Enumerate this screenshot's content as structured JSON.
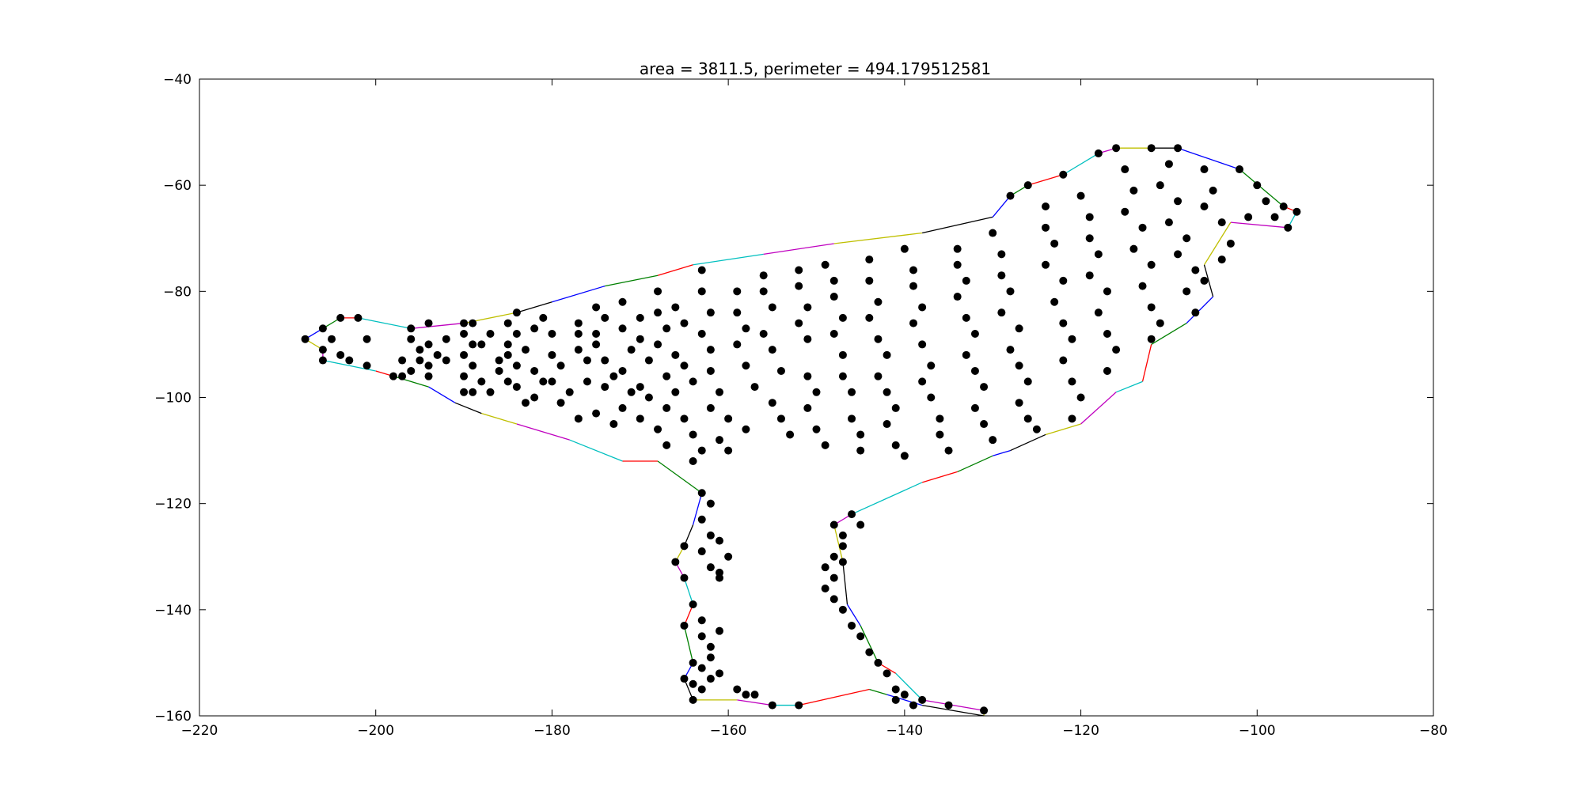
{
  "chart_data": {
    "type": "scatter",
    "title": "area = 3811.5, perimeter = 494.179512581",
    "xlabel": "",
    "ylabel": "",
    "xlim": [
      -220,
      -80
    ],
    "ylim": [
      -160,
      -40
    ],
    "xticks": [
      -220,
      -200,
      -180,
      -160,
      -140,
      -120,
      -100,
      -80
    ],
    "yticks": [
      -40,
      -60,
      -80,
      -100,
      -120,
      -140,
      -160
    ],
    "grid": false,
    "point_color": "#000000",
    "edge_colors": [
      "#0000ff",
      "#008000",
      "#ff0000",
      "#00bfbf",
      "#bf00bf",
      "#bfbf00",
      "#000000"
    ],
    "hull": [
      [
        -208,
        -89
      ],
      [
        -206,
        -87
      ],
      [
        -204,
        -85
      ],
      [
        -202,
        -85
      ],
      [
        -196,
        -87
      ],
      [
        -190,
        -86
      ],
      [
        -184,
        -84
      ],
      [
        -180,
        -82
      ],
      [
        -174,
        -79
      ],
      [
        -168,
        -77
      ],
      [
        -164,
        -75
      ],
      [
        -156,
        -73
      ],
      [
        -148,
        -71
      ],
      [
        -138,
        -69
      ],
      [
        -130,
        -66
      ],
      [
        -128,
        -62
      ],
      [
        -126,
        -60
      ],
      [
        -122,
        -58
      ],
      [
        -118,
        -54
      ],
      [
        -116,
        -53
      ],
      [
        -112,
        -53
      ],
      [
        -109,
        -53
      ],
      [
        -102,
        -57
      ],
      [
        -97,
        -64
      ],
      [
        -95.5,
        -65
      ],
      [
        -96.5,
        -68
      ],
      [
        -103,
        -67
      ],
      [
        -106,
        -75
      ],
      [
        -105,
        -81
      ],
      [
        -108,
        -86
      ],
      [
        -112,
        -90
      ],
      [
        -113,
        -97
      ],
      [
        -116,
        -99
      ],
      [
        -120,
        -105
      ],
      [
        -124,
        -107
      ],
      [
        -128,
        -110
      ],
      [
        -130,
        -111
      ],
      [
        -134,
        -114
      ],
      [
        -138,
        -116
      ],
      [
        -146,
        -122
      ],
      [
        -148,
        -124
      ],
      [
        -147,
        -131
      ],
      [
        -146.5,
        -139
      ],
      [
        -145,
        -143
      ],
      [
        -143,
        -150
      ],
      [
        -141,
        -152
      ],
      [
        -138,
        -157
      ],
      [
        -131,
        -159
      ],
      [
        -131,
        -160
      ],
      [
        -138,
        -158
      ],
      [
        -142,
        -156
      ],
      [
        -144,
        -155
      ],
      [
        -152,
        -158
      ],
      [
        -155,
        -158
      ],
      [
        -159,
        -157
      ],
      [
        -164,
        -157
      ],
      [
        -165,
        -153
      ],
      [
        -164,
        -150
      ],
      [
        -165,
        -143
      ],
      [
        -164,
        -139
      ],
      [
        -165,
        -134
      ],
      [
        -166,
        -131
      ],
      [
        -165,
        -128
      ],
      [
        -164,
        -124
      ],
      [
        -163,
        -118
      ],
      [
        -168,
        -112
      ],
      [
        -172,
        -112
      ],
      [
        -178,
        -108
      ],
      [
        -184,
        -105
      ],
      [
        -188,
        -103
      ],
      [
        -191,
        -101
      ],
      [
        -194,
        -98
      ],
      [
        -198,
        -96
      ],
      [
        -200,
        -95
      ],
      [
        -206,
        -93
      ],
      [
        -206,
        -91
      ],
      [
        -208,
        -89
      ]
    ],
    "points": [
      [
        -208,
        -89
      ],
      [
        -206,
        -87
      ],
      [
        -204,
        -85
      ],
      [
        -202,
        -85
      ],
      [
        -206,
        -91
      ],
      [
        -206,
        -93
      ],
      [
        -205,
        -89
      ],
      [
        -204,
        -92
      ],
      [
        -203,
        -93
      ],
      [
        -201,
        -89
      ],
      [
        -201,
        -94
      ],
      [
        -196,
        -87
      ],
      [
        -196,
        -89
      ],
      [
        -195,
        -91
      ],
      [
        -197,
        -93
      ],
      [
        -195,
        -93
      ],
      [
        -196,
        -95
      ],
      [
        -198,
        -96
      ],
      [
        -197,
        -96
      ],
      [
        -194,
        -86
      ],
      [
        -194,
        -90
      ],
      [
        -193,
        -92
      ],
      [
        -194,
        -94
      ],
      [
        -194,
        -96
      ],
      [
        -192,
        -89
      ],
      [
        -192,
        -93
      ],
      [
        -190,
        -86
      ],
      [
        -189,
        -86
      ],
      [
        -190,
        -88
      ],
      [
        -189,
        -90
      ],
      [
        -190,
        -92
      ],
      [
        -189,
        -94
      ],
      [
        -190,
        -96
      ],
      [
        -188,
        -97
      ],
      [
        -190,
        -99
      ],
      [
        -189,
        -99
      ],
      [
        -187,
        -88
      ],
      [
        -188,
        -90
      ],
      [
        -186,
        -93
      ],
      [
        -186,
        -95
      ],
      [
        -187,
        -99
      ],
      [
        -185,
        -86
      ],
      [
        -184,
        -88
      ],
      [
        -185,
        -90
      ],
      [
        -185,
        -92
      ],
      [
        -184,
        -94
      ],
      [
        -185,
        -97
      ],
      [
        -184,
        -98
      ],
      [
        -183,
        -101
      ],
      [
        -182,
        -87
      ],
      [
        -183,
        -91
      ],
      [
        -182,
        -95
      ],
      [
        -181,
        -97
      ],
      [
        -182,
        -100
      ],
      [
        -184,
        -84
      ],
      [
        -181,
        -85
      ],
      [
        -180,
        -88
      ],
      [
        -180,
        -92
      ],
      [
        -179,
        -94
      ],
      [
        -180,
        -97
      ],
      [
        -178,
        -99
      ],
      [
        -179,
        -101
      ],
      [
        -177,
        -86
      ],
      [
        -177,
        -88
      ],
      [
        -177,
        -91
      ],
      [
        -176,
        -93
      ],
      [
        -176,
        -97
      ],
      [
        -177,
        -104
      ],
      [
        -175,
        -83
      ],
      [
        -174,
        -85
      ],
      [
        -175,
        -88
      ],
      [
        -175,
        -90
      ],
      [
        -174,
        -93
      ],
      [
        -173,
        -96
      ],
      [
        -174,
        -98
      ],
      [
        -175,
        -103
      ],
      [
        -173,
        -105
      ],
      [
        -172,
        -82
      ],
      [
        -172,
        -87
      ],
      [
        -171,
        -91
      ],
      [
        -172,
        -95
      ],
      [
        -171,
        -99
      ],
      [
        -172,
        -102
      ],
      [
        -170,
        -85
      ],
      [
        -170,
        -89
      ],
      [
        -169,
        -93
      ],
      [
        -170,
        -98
      ],
      [
        -169,
        -100
      ],
      [
        -170,
        -104
      ],
      [
        -168,
        -80
      ],
      [
        -168,
        -84
      ],
      [
        -167,
        -87
      ],
      [
        -168,
        -90
      ],
      [
        -167,
        -96
      ],
      [
        -166,
        -99
      ],
      [
        -167,
        -102
      ],
      [
        -168,
        -106
      ],
      [
        -167,
        -109
      ],
      [
        -166,
        -83
      ],
      [
        -165,
        -86
      ],
      [
        -166,
        -92
      ],
      [
        -165,
        -94
      ],
      [
        -164,
        -97
      ],
      [
        -165,
        -104
      ],
      [
        -164,
        -107
      ],
      [
        -163,
        -110
      ],
      [
        -164,
        -112
      ],
      [
        -163,
        -76
      ],
      [
        -163,
        -80
      ],
      [
        -162,
        -84
      ],
      [
        -163,
        -88
      ],
      [
        -162,
        -91
      ],
      [
        -162,
        -95
      ],
      [
        -161,
        -99
      ],
      [
        -162,
        -102
      ],
      [
        -160,
        -104
      ],
      [
        -161,
        -108
      ],
      [
        -160,
        -110
      ],
      [
        -159,
        -80
      ],
      [
        -159,
        -84
      ],
      [
        -158,
        -87
      ],
      [
        -159,
        -90
      ],
      [
        -158,
        -94
      ],
      [
        -157,
        -98
      ],
      [
        -158,
        -106
      ],
      [
        -156,
        -77
      ],
      [
        -156,
        -80
      ],
      [
        -155,
        -83
      ],
      [
        -156,
        -88
      ],
      [
        -155,
        -91
      ],
      [
        -154,
        -95
      ],
      [
        -155,
        -101
      ],
      [
        -154,
        -104
      ],
      [
        -153,
        -107
      ],
      [
        -152,
        -76
      ],
      [
        -152,
        -79
      ],
      [
        -151,
        -83
      ],
      [
        -152,
        -86
      ],
      [
        -151,
        -89
      ],
      [
        -151,
        -96
      ],
      [
        -150,
        -99
      ],
      [
        -151,
        -102
      ],
      [
        -150,
        -106
      ],
      [
        -149,
        -109
      ],
      [
        -149,
        -75
      ],
      [
        -148,
        -78
      ],
      [
        -148,
        -81
      ],
      [
        -147,
        -85
      ],
      [
        -148,
        -88
      ],
      [
        -147,
        -92
      ],
      [
        -147,
        -96
      ],
      [
        -146,
        -99
      ],
      [
        -146,
        -104
      ],
      [
        -145,
        -107
      ],
      [
        -145,
        -110
      ],
      [
        -144,
        -74
      ],
      [
        -144,
        -78
      ],
      [
        -143,
        -82
      ],
      [
        -144,
        -85
      ],
      [
        -143,
        -89
      ],
      [
        -142,
        -92
      ],
      [
        -143,
        -96
      ],
      [
        -142,
        -99
      ],
      [
        -141,
        -102
      ],
      [
        -142,
        -105
      ],
      [
        -141,
        -109
      ],
      [
        -140,
        -111
      ],
      [
        -140,
        -72
      ],
      [
        -139,
        -76
      ],
      [
        -139,
        -79
      ],
      [
        -138,
        -83
      ],
      [
        -139,
        -86
      ],
      [
        -138,
        -90
      ],
      [
        -137,
        -94
      ],
      [
        -138,
        -97
      ],
      [
        -137,
        -100
      ],
      [
        -136,
        -104
      ],
      [
        -136,
        -107
      ],
      [
        -135,
        -110
      ],
      [
        -134,
        -72
      ],
      [
        -134,
        -75
      ],
      [
        -133,
        -78
      ],
      [
        -134,
        -81
      ],
      [
        -133,
        -85
      ],
      [
        -132,
        -88
      ],
      [
        -133,
        -92
      ],
      [
        -132,
        -95
      ],
      [
        -131,
        -98
      ],
      [
        -132,
        -102
      ],
      [
        -131,
        -105
      ],
      [
        -130,
        -108
      ],
      [
        -130,
        -69
      ],
      [
        -129,
        -73
      ],
      [
        -129,
        -77
      ],
      [
        -128,
        -80
      ],
      [
        -129,
        -84
      ],
      [
        -127,
        -87
      ],
      [
        -128,
        -91
      ],
      [
        -127,
        -94
      ],
      [
        -126,
        -97
      ],
      [
        -127,
        -101
      ],
      [
        -126,
        -104
      ],
      [
        -125,
        -106
      ],
      [
        -128,
        -62
      ],
      [
        -126,
        -60
      ],
      [
        -124,
        -64
      ],
      [
        -124,
        -68
      ],
      [
        -123,
        -71
      ],
      [
        -124,
        -75
      ],
      [
        -122,
        -78
      ],
      [
        -123,
        -82
      ],
      [
        -122,
        -86
      ],
      [
        -121,
        -89
      ],
      [
        -122,
        -93
      ],
      [
        -121,
        -97
      ],
      [
        -120,
        -100
      ],
      [
        -121,
        -104
      ],
      [
        -122,
        -58
      ],
      [
        -120,
        -62
      ],
      [
        -119,
        -66
      ],
      [
        -119,
        -70
      ],
      [
        -118,
        -73
      ],
      [
        -119,
        -77
      ],
      [
        -117,
        -80
      ],
      [
        -118,
        -84
      ],
      [
        -117,
        -88
      ],
      [
        -116,
        -91
      ],
      [
        -117,
        -95
      ],
      [
        -118,
        -54
      ],
      [
        -116,
        -53
      ],
      [
        -115,
        -57
      ],
      [
        -114,
        -61
      ],
      [
        -115,
        -65
      ],
      [
        -113,
        -68
      ],
      [
        -114,
        -72
      ],
      [
        -112,
        -75
      ],
      [
        -113,
        -79
      ],
      [
        -112,
        -83
      ],
      [
        -111,
        -86
      ],
      [
        -112,
        -89
      ],
      [
        -112,
        -53
      ],
      [
        -110,
        -56
      ],
      [
        -111,
        -60
      ],
      [
        -109,
        -63
      ],
      [
        -110,
        -67
      ],
      [
        -108,
        -70
      ],
      [
        -109,
        -73
      ],
      [
        -107,
        -76
      ],
      [
        -108,
        -80
      ],
      [
        -107,
        -84
      ],
      [
        -109,
        -53
      ],
      [
        -106,
        -57
      ],
      [
        -105,
        -61
      ],
      [
        -106,
        -64
      ],
      [
        -104,
        -67
      ],
      [
        -103,
        -71
      ],
      [
        -104,
        -74
      ],
      [
        -106,
        -78
      ],
      [
        -102,
        -57
      ],
      [
        -100,
        -60
      ],
      [
        -99,
        -63
      ],
      [
        -101,
        -66
      ],
      [
        -97,
        -64
      ],
      [
        -95.5,
        -65
      ],
      [
        -96.5,
        -68
      ],
      [
        -98,
        -66
      ],
      [
        -163,
        -118
      ],
      [
        -162,
        -120
      ],
      [
        -163,
        -123
      ],
      [
        -162,
        -126
      ],
      [
        -163,
        -129
      ],
      [
        -162,
        -132
      ],
      [
        -161,
        -134
      ],
      [
        -165,
        -128
      ],
      [
        -166,
        -131
      ],
      [
        -165,
        -134
      ],
      [
        -161,
        -127
      ],
      [
        -160,
        -130
      ],
      [
        -161,
        -133
      ],
      [
        -164,
        -139
      ],
      [
        -163,
        -142
      ],
      [
        -165,
        -143
      ],
      [
        -163,
        -145
      ],
      [
        -162,
        -147
      ],
      [
        -161,
        -144
      ],
      [
        -162,
        -149
      ],
      [
        -163,
        -151
      ],
      [
        -164,
        -150
      ],
      [
        -165,
        -153
      ],
      [
        -164,
        -154
      ],
      [
        -162,
        -153
      ],
      [
        -161,
        -152
      ],
      [
        -163,
        -155
      ],
      [
        -164,
        -157
      ],
      [
        -159,
        -155
      ],
      [
        -158,
        -156
      ],
      [
        -157,
        -156
      ],
      [
        -155,
        -158
      ],
      [
        -152,
        -158
      ],
      [
        -148,
        -124
      ],
      [
        -147,
        -126
      ],
      [
        -147,
        -128
      ],
      [
        -148,
        -130
      ],
      [
        -149,
        -132
      ],
      [
        -148,
        -134
      ],
      [
        -149,
        -136
      ],
      [
        -148,
        -138
      ],
      [
        -147,
        -131
      ],
      [
        -146,
        -122
      ],
      [
        -145,
        -124
      ],
      [
        -147,
        -140
      ],
      [
        -146,
        -143
      ],
      [
        -145,
        -145
      ],
      [
        -144,
        -148
      ],
      [
        -143,
        -150
      ],
      [
        -142,
        -152
      ],
      [
        -141,
        -155
      ],
      [
        -140,
        -156
      ],
      [
        -138,
        -157
      ],
      [
        -139,
        -158
      ],
      [
        -141,
        -157
      ],
      [
        -135,
        -158
      ],
      [
        -131,
        -159
      ]
    ]
  }
}
